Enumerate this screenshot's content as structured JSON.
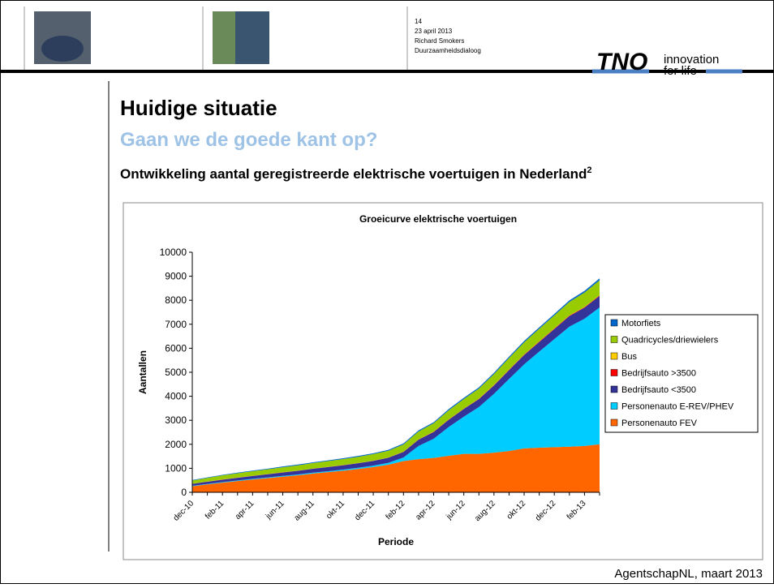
{
  "header": {
    "slide_number": "14",
    "date": "23 april 2013",
    "author": "Richard Smokers",
    "event": "Duurzaamheidsdialoog",
    "logo": "TNO",
    "tagline_1": "innovation",
    "tagline_2": "for life"
  },
  "title": "Huidige situatie",
  "subtitle": "Gaan we de goede kant op?",
  "heading": "Ontwikkeling aantal geregistreerde elektrische voertuigen in Nederland",
  "heading_sup": "2",
  "footer": "AgentschapNL, maart 2013",
  "chart_data": {
    "type": "stacked_area",
    "title": "Groeicurve elektrische voertuigen",
    "x_label": "Periode",
    "y_label": "Aantallen",
    "categories": [
      "dec-10",
      null,
      "feb-11",
      null,
      "apr-11",
      null,
      "jun-11",
      null,
      "aug-11",
      null,
      "okt-11",
      null,
      "dec-11",
      null,
      "feb-12",
      null,
      "apr-12",
      null,
      "jun-12",
      null,
      "aug-12",
      null,
      "okt-12",
      null,
      "dec-12",
      null,
      "feb-13",
      null
    ],
    "ylim": [
      0,
      10000
    ],
    "yticks": [
      0,
      1000,
      2000,
      3000,
      4000,
      5000,
      6000,
      7000,
      8000,
      9000,
      10000
    ],
    "grid": false,
    "legend": "right",
    "series": [
      {
        "name": "Personenauto FEV",
        "color": "#ff6600",
        "values": [
          250,
          330,
          400,
          470,
          530,
          590,
          650,
          710,
          780,
          840,
          900,
          970,
          1050,
          1150,
          1300,
          1380,
          1430,
          1520,
          1600,
          1600,
          1650,
          1720,
          1830,
          1860,
          1880,
          1900,
          1930,
          2000
        ]
      },
      {
        "name": "Personenauto E-REV/PHEV",
        "color": "#00ccff",
        "values": [
          20,
          20,
          25,
          25,
          30,
          30,
          35,
          35,
          40,
          40,
          45,
          50,
          60,
          80,
          150,
          550,
          800,
          1200,
          1550,
          1950,
          2450,
          3000,
          3500,
          4000,
          4500,
          5000,
          5300,
          5700
        ]
      },
      {
        "name": "Bedrijfsauto <3500",
        "color": "#333399",
        "values": [
          80,
          90,
          100,
          110,
          120,
          130,
          140,
          150,
          160,
          170,
          180,
          190,
          200,
          210,
          230,
          260,
          280,
          300,
          320,
          330,
          350,
          370,
          390,
          400,
          420,
          440,
          460,
          480
        ]
      },
      {
        "name": "Bedrijfsauto >3500",
        "color": "#ff0000",
        "values": [
          5,
          5,
          5,
          5,
          5,
          5,
          5,
          5,
          5,
          5,
          5,
          5,
          5,
          5,
          10,
          10,
          10,
          10,
          10,
          15,
          15,
          15,
          15,
          20,
          20,
          20,
          20,
          20
        ]
      },
      {
        "name": "Bus",
        "color": "#ffcc00",
        "values": [
          5,
          5,
          5,
          5,
          5,
          5,
          5,
          5,
          5,
          5,
          5,
          5,
          5,
          5,
          5,
          5,
          5,
          5,
          5,
          5,
          10,
          10,
          10,
          10,
          10,
          10,
          10,
          10
        ]
      },
      {
        "name": "Quadricycles/driewielers",
        "color": "#99cc00",
        "values": [
          130,
          150,
          170,
          180,
          190,
          200,
          210,
          220,
          230,
          240,
          250,
          260,
          270,
          280,
          300,
          330,
          350,
          380,
          400,
          420,
          450,
          480,
          500,
          520,
          540,
          560,
          600,
          620
        ]
      },
      {
        "name": "Motorfiets",
        "color": "#0066cc",
        "values": [
          20,
          20,
          20,
          25,
          25,
          25,
          30,
          30,
          30,
          30,
          35,
          35,
          35,
          40,
          40,
          45,
          45,
          50,
          50,
          50,
          55,
          55,
          60,
          60,
          60,
          65,
          70,
          80
        ]
      }
    ]
  }
}
